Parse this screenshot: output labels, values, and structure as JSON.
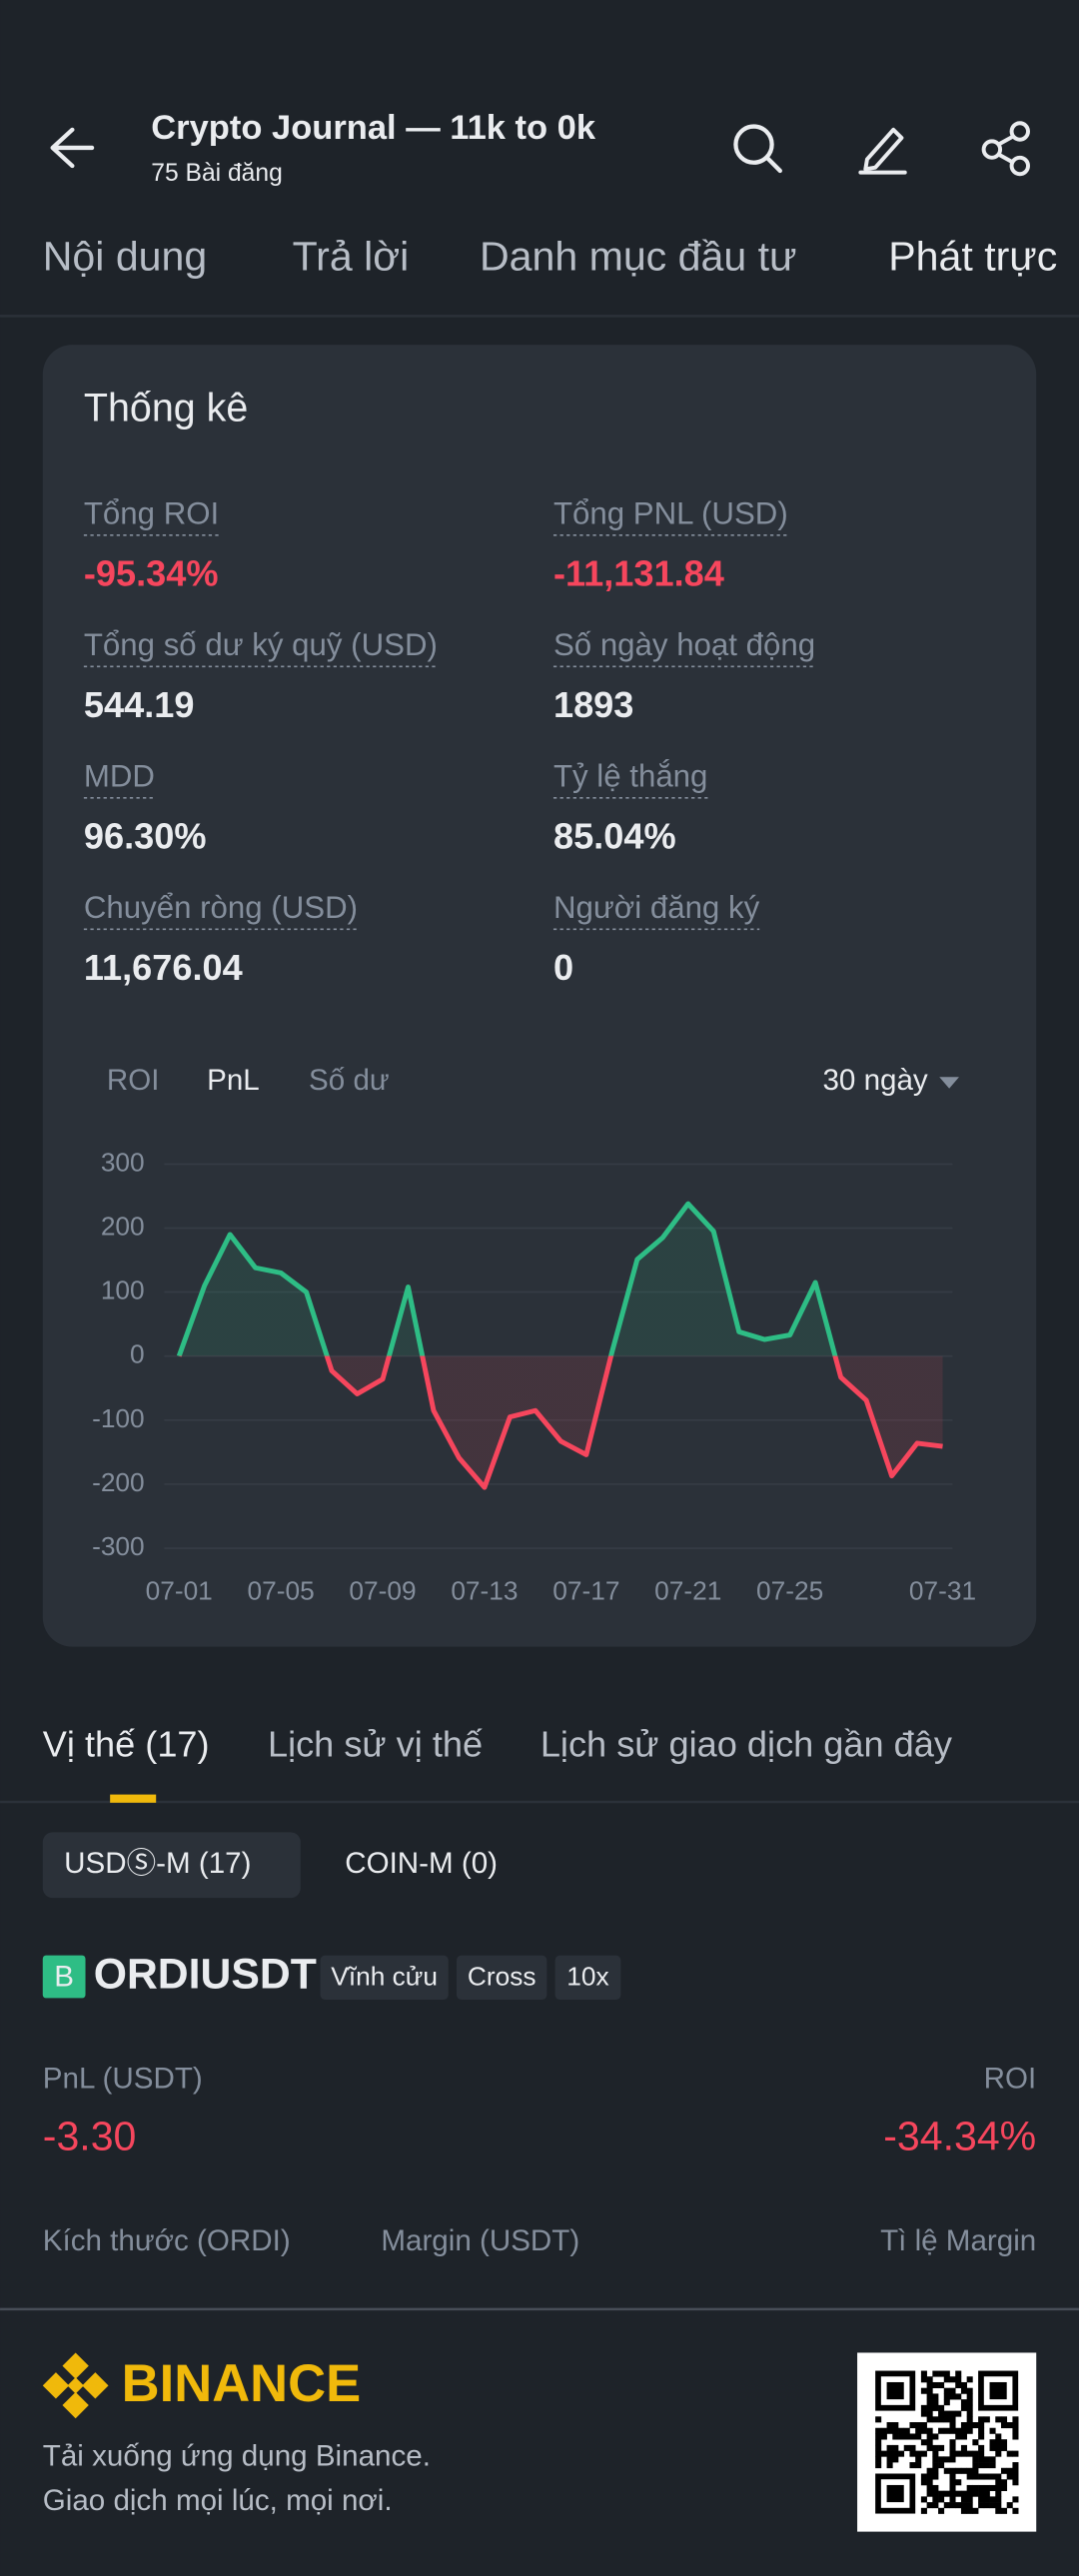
{
  "header": {
    "title": "Crypto Journal — 11k to 0k",
    "subtitle": "75 Bài đăng"
  },
  "tabs": [
    "Nội dung",
    "Trả lời",
    "Danh mục đầu tư",
    "Phát trực"
  ],
  "stats": {
    "title": "Thống kê",
    "items": [
      {
        "label": "Tổng ROI",
        "value": "-95.34%"
      },
      {
        "label": "Tổng PNL (USD)",
        "value": "-11,131.84"
      },
      {
        "label": "Tổng số dư ký quỹ (USD)",
        "value": "544.19"
      },
      {
        "label": "Số ngày hoạt động",
        "value": "1893"
      },
      {
        "label": "MDD",
        "value": "96.30%"
      },
      {
        "label": "Tỷ lệ thắng",
        "value": "85.04%"
      },
      {
        "label": "Chuyển ròng (USD)",
        "value": "11,676.04"
      },
      {
        "label": "Người đăng ký",
        "value": "0"
      }
    ]
  },
  "chart_toggle": {
    "options": [
      "ROI",
      "PnL",
      "Số dư"
    ],
    "period": "30 ngày"
  },
  "chart_data": {
    "type": "line",
    "categories": [
      "07-01",
      null,
      null,
      null,
      "07-05",
      null,
      null,
      null,
      "07-09",
      null,
      null,
      null,
      "07-13",
      null,
      null,
      null,
      "07-17",
      null,
      null,
      null,
      "07-21",
      null,
      null,
      null,
      "07-25",
      null,
      null,
      null,
      null,
      null,
      "07-31"
    ],
    "values": [
      0,
      110,
      190,
      138,
      130,
      100,
      -23,
      -59,
      -36,
      108,
      -85,
      -159,
      -205,
      -95,
      -85,
      -133,
      -154,
      5,
      151,
      185,
      238,
      195,
      38,
      26,
      33,
      115,
      -33,
      -69,
      -187,
      -136,
      -141
    ],
    "color_positive": "#2ebd85",
    "color_negative": "#f6465d",
    "ylim": [
      -300,
      300
    ],
    "yticks": [
      -300,
      -200,
      -100,
      0,
      100,
      200,
      300
    ],
    "grid": true
  },
  "position_tabs": [
    "Vị thế (17)",
    "Lịch sử vị thế",
    "Lịch sử giao dịch gần đây"
  ],
  "margin_tabs": [
    "USDⓈ-M (17)",
    "COIN-M (0)"
  ],
  "position": {
    "badge": "B",
    "symbol": "ORDIUSDT",
    "tags": [
      "Vĩnh cửu",
      "Cross",
      "10x"
    ],
    "pnl_label": "PnL (USDT)",
    "pnl": "-3.30",
    "roi_label": "ROI",
    "roi": "-34.34%",
    "columns": [
      "Kích thước (ORDI)",
      "Margin (USDT)",
      "Tì lệ Margin"
    ]
  },
  "footer": {
    "brand": "BINANCE",
    "lines": [
      "Tải xuống ứng dụng Binance.",
      "Giao dịch mọi lúc, mọi nơi."
    ]
  }
}
